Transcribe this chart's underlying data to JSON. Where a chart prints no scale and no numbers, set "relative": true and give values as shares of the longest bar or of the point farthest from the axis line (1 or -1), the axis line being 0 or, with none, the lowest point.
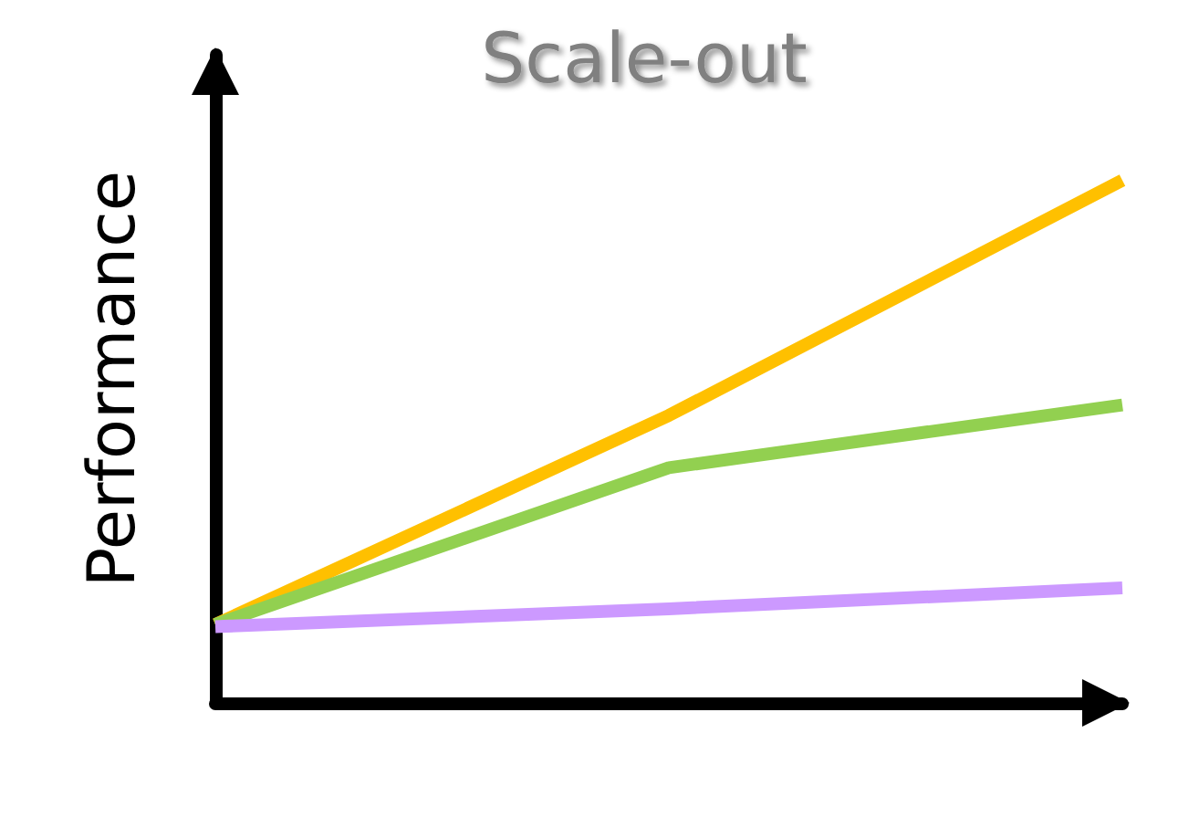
{
  "chart_data": {
    "type": "line",
    "title": "Scale-out",
    "ylabel": "Performance",
    "relative": true,
    "categories": [
      null,
      null,
      null
    ],
    "grid": false,
    "marker": "none",
    "line_style": "solid",
    "series": [
      {
        "color": "#ffc000",
        "values": [
          0.15,
          0.55,
          1
        ]
      },
      {
        "color": "#92d050",
        "values": [
          0.15,
          0.45,
          0.57
        ]
      },
      {
        "color": "#cc99ff",
        "values": [
          0.146,
          0.18,
          0.22
        ]
      }
    ]
  }
}
